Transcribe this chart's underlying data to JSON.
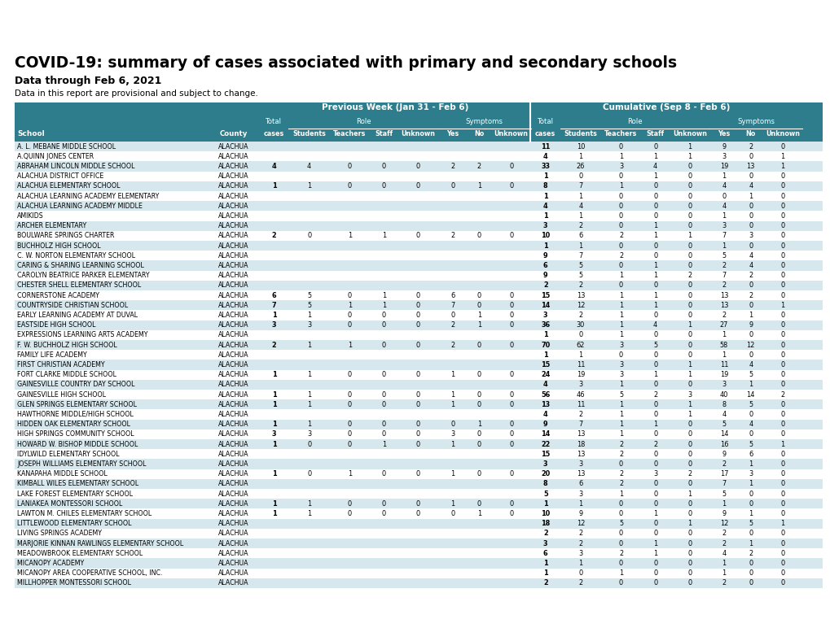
{
  "title": "COVID-19: summary of cases associated with primary and secondary schools",
  "subtitle": "Data through Feb 6, 2021",
  "note": "Data in this report are provisional and subject to change.",
  "header_color": "#2D7D8C",
  "alt_row_color": "#D6E8ED",
  "white_row_color": "#FFFFFF",
  "header_text_color": "#FFFFFF",
  "rows": [
    [
      "A. L. MEBANE MIDDLE SCHOOL",
      "ALACHUA",
      "",
      "",
      "",
      "",
      "",
      "",
      "",
      "",
      "11",
      "10",
      "0",
      "0",
      "1",
      "9",
      "2",
      "0"
    ],
    [
      "A.QUINN JONES CENTER",
      "ALACHUA",
      "",
      "",
      "",
      "",
      "",
      "",
      "",
      "",
      "4",
      "1",
      "1",
      "1",
      "1",
      "3",
      "0",
      "1"
    ],
    [
      "ABRAHAM LINCOLN MIDDLE SCHOOL",
      "ALACHUA",
      "4",
      "4",
      "0",
      "0",
      "0",
      "2",
      "2",
      "0",
      "33",
      "26",
      "3",
      "4",
      "0",
      "19",
      "13",
      "1"
    ],
    [
      "ALACHUA DISTRICT OFFICE",
      "ALACHUA",
      "",
      "",
      "",
      "",
      "",
      "",
      "",
      "",
      "1",
      "0",
      "0",
      "1",
      "0",
      "1",
      "0",
      "0"
    ],
    [
      "ALACHUA ELEMENTARY SCHOOL",
      "ALACHUA",
      "1",
      "1",
      "0",
      "0",
      "0",
      "0",
      "1",
      "0",
      "8",
      "7",
      "1",
      "0",
      "0",
      "4",
      "4",
      "0"
    ],
    [
      "ALACHUA LEARNING ACADEMY ELEMENTARY",
      "ALACHUA",
      "",
      "",
      "",
      "",
      "",
      "",
      "",
      "",
      "1",
      "1",
      "0",
      "0",
      "0",
      "0",
      "1",
      "0"
    ],
    [
      "ALACHUA LEARNING ACADEMY MIDDLE",
      "ALACHUA",
      "",
      "",
      "",
      "",
      "",
      "",
      "",
      "",
      "4",
      "4",
      "0",
      "0",
      "0",
      "4",
      "0",
      "0"
    ],
    [
      "AMIKIDS",
      "ALACHUA",
      "",
      "",
      "",
      "",
      "",
      "",
      "",
      "",
      "1",
      "1",
      "0",
      "0",
      "0",
      "1",
      "0",
      "0"
    ],
    [
      "ARCHER ELEMENTARY",
      "ALACHUA",
      "",
      "",
      "",
      "",
      "",
      "",
      "",
      "",
      "3",
      "2",
      "0",
      "1",
      "0",
      "3",
      "0",
      "0"
    ],
    [
      "BOULWARE SPRINGS CHARTER",
      "ALACHUA",
      "2",
      "0",
      "1",
      "1",
      "0",
      "2",
      "0",
      "0",
      "10",
      "6",
      "2",
      "1",
      "1",
      "7",
      "3",
      "0"
    ],
    [
      "BUCHHOLZ HIGH SCHOOL",
      "ALACHUA",
      "",
      "",
      "",
      "",
      "",
      "",
      "",
      "",
      "1",
      "1",
      "0",
      "0",
      "0",
      "1",
      "0",
      "0"
    ],
    [
      "C. W. NORTON ELEMENTARY SCHOOL",
      "ALACHUA",
      "",
      "",
      "",
      "",
      "",
      "",
      "",
      "",
      "9",
      "7",
      "2",
      "0",
      "0",
      "5",
      "4",
      "0"
    ],
    [
      "CARING & SHARING LEARNING SCHOOL",
      "ALACHUA",
      "",
      "",
      "",
      "",
      "",
      "",
      "",
      "",
      "6",
      "5",
      "0",
      "1",
      "0",
      "2",
      "4",
      "0"
    ],
    [
      "CAROLYN BEATRICE PARKER ELEMENTARY",
      "ALACHUA",
      "",
      "",
      "",
      "",
      "",
      "",
      "",
      "",
      "9",
      "5",
      "1",
      "1",
      "2",
      "7",
      "2",
      "0"
    ],
    [
      "CHESTER SHELL ELEMENTARY SCHOOL",
      "ALACHUA",
      "",
      "",
      "",
      "",
      "",
      "",
      "",
      "",
      "2",
      "2",
      "0",
      "0",
      "0",
      "2",
      "0",
      "0"
    ],
    [
      "CORNERSTONE ACADEMY",
      "ALACHUA",
      "6",
      "5",
      "0",
      "1",
      "0",
      "6",
      "0",
      "0",
      "15",
      "13",
      "1",
      "1",
      "0",
      "13",
      "2",
      "0"
    ],
    [
      "COUNTRYSIDE CHRISTIAN SCHOOL",
      "ALACHUA",
      "7",
      "5",
      "1",
      "1",
      "0",
      "7",
      "0",
      "0",
      "14",
      "12",
      "1",
      "1",
      "0",
      "13",
      "0",
      "1"
    ],
    [
      "EARLY LEARNING ACADEMY AT DUVAL",
      "ALACHUA",
      "1",
      "1",
      "0",
      "0",
      "0",
      "0",
      "1",
      "0",
      "3",
      "2",
      "1",
      "0",
      "0",
      "2",
      "1",
      "0"
    ],
    [
      "EASTSIDE HIGH SCHOOL",
      "ALACHUA",
      "3",
      "3",
      "0",
      "0",
      "0",
      "2",
      "1",
      "0",
      "36",
      "30",
      "1",
      "4",
      "1",
      "27",
      "9",
      "0"
    ],
    [
      "EXPRESSIONS LEARNING ARTS ACADEMY",
      "ALACHUA",
      "",
      "",
      "",
      "",
      "",
      "",
      "",
      "",
      "1",
      "0",
      "1",
      "0",
      "0",
      "1",
      "0",
      "0"
    ],
    [
      "F. W. BUCHHOLZ HIGH SCHOOL",
      "ALACHUA",
      "2",
      "1",
      "1",
      "0",
      "0",
      "2",
      "0",
      "0",
      "70",
      "62",
      "3",
      "5",
      "0",
      "58",
      "12",
      "0"
    ],
    [
      "FAMILY LIFE ACADEMY",
      "ALACHUA",
      "",
      "",
      "",
      "",
      "",
      "",
      "",
      "",
      "1",
      "1",
      "0",
      "0",
      "0",
      "1",
      "0",
      "0"
    ],
    [
      "FIRST CHRISTIAN ACADEMY",
      "ALACHUA",
      "",
      "",
      "",
      "",
      "",
      "",
      "",
      "",
      "15",
      "11",
      "3",
      "0",
      "1",
      "11",
      "4",
      "0"
    ],
    [
      "FORT CLARKE MIDDLE SCHOOL",
      "ALACHUA",
      "1",
      "1",
      "0",
      "0",
      "0",
      "1",
      "0",
      "0",
      "24",
      "19",
      "3",
      "1",
      "1",
      "19",
      "5",
      "0"
    ],
    [
      "GAINESVILLE COUNTRY DAY SCHOOL",
      "ALACHUA",
      "",
      "",
      "",
      "",
      "",
      "",
      "",
      "",
      "4",
      "3",
      "1",
      "0",
      "0",
      "3",
      "1",
      "0"
    ],
    [
      "GAINESVILLE HIGH SCHOOL",
      "ALACHUA",
      "1",
      "1",
      "0",
      "0",
      "0",
      "1",
      "0",
      "0",
      "56",
      "46",
      "5",
      "2",
      "3",
      "40",
      "14",
      "2"
    ],
    [
      "GLEN SPRINGS ELEMENTARY SCHOOL",
      "ALACHUA",
      "1",
      "1",
      "0",
      "0",
      "0",
      "1",
      "0",
      "0",
      "13",
      "11",
      "1",
      "0",
      "1",
      "8",
      "5",
      "0"
    ],
    [
      "HAWTHORNE MIDDLE/HIGH SCHOOL",
      "ALACHUA",
      "",
      "",
      "",
      "",
      "",
      "",
      "",
      "",
      "4",
      "2",
      "1",
      "0",
      "1",
      "4",
      "0",
      "0"
    ],
    [
      "HIDDEN OAK ELEMENTARY SCHOOL",
      "ALACHUA",
      "1",
      "1",
      "0",
      "0",
      "0",
      "0",
      "1",
      "0",
      "9",
      "7",
      "1",
      "1",
      "0",
      "5",
      "4",
      "0"
    ],
    [
      "HIGH SPRINGS COMMUNITY SCHOOL",
      "ALACHUA",
      "3",
      "3",
      "0",
      "0",
      "0",
      "3",
      "0",
      "0",
      "14",
      "13",
      "1",
      "0",
      "0",
      "14",
      "0",
      "0"
    ],
    [
      "HOWARD W. BISHOP MIDDLE SCHOOL",
      "ALACHUA",
      "1",
      "0",
      "0",
      "1",
      "0",
      "1",
      "0",
      "0",
      "22",
      "18",
      "2",
      "2",
      "0",
      "16",
      "5",
      "1"
    ],
    [
      "IDYLWILD ELEMENTARY SCHOOL",
      "ALACHUA",
      "",
      "",
      "",
      "",
      "",
      "",
      "",
      "",
      "15",
      "13",
      "2",
      "0",
      "0",
      "9",
      "6",
      "0"
    ],
    [
      "JOSEPH WILLIAMS ELEMENTARY SCHOOL",
      "ALACHUA",
      "",
      "",
      "",
      "",
      "",
      "",
      "",
      "",
      "3",
      "3",
      "0",
      "0",
      "0",
      "2",
      "1",
      "0"
    ],
    [
      "KANAPAHA MIDDLE SCHOOL",
      "ALACHUA",
      "1",
      "0",
      "1",
      "0",
      "0",
      "1",
      "0",
      "0",
      "20",
      "13",
      "2",
      "3",
      "2",
      "17",
      "3",
      "0"
    ],
    [
      "KIMBALL WILES ELEMENTARY SCHOOL",
      "ALACHUA",
      "",
      "",
      "",
      "",
      "",
      "",
      "",
      "",
      "8",
      "6",
      "2",
      "0",
      "0",
      "7",
      "1",
      "0"
    ],
    [
      "LAKE FOREST ELEMENTARY SCHOOL",
      "ALACHUA",
      "",
      "",
      "",
      "",
      "",
      "",
      "",
      "",
      "5",
      "3",
      "1",
      "0",
      "1",
      "5",
      "0",
      "0"
    ],
    [
      "LANIAKEA MONTESSORI SCHOOL",
      "ALACHUA",
      "1",
      "1",
      "0",
      "0",
      "0",
      "1",
      "0",
      "0",
      "1",
      "1",
      "0",
      "0",
      "0",
      "1",
      "0",
      "0"
    ],
    [
      "LAWTON M. CHILES ELEMENTARY SCHOOL",
      "ALACHUA",
      "1",
      "1",
      "0",
      "0",
      "0",
      "0",
      "1",
      "0",
      "10",
      "9",
      "0",
      "1",
      "0",
      "9",
      "1",
      "0"
    ],
    [
      "LITTLEWOOD ELEMENTARY SCHOOL",
      "ALACHUA",
      "",
      "",
      "",
      "",
      "",
      "",
      "",
      "",
      "18",
      "12",
      "5",
      "0",
      "1",
      "12",
      "5",
      "1"
    ],
    [
      "LIVING SPRINGS ACADEMY",
      "ALACHUA",
      "",
      "",
      "",
      "",
      "",
      "",
      "",
      "",
      "2",
      "2",
      "0",
      "0",
      "0",
      "2",
      "0",
      "0"
    ],
    [
      "MARJORIE KINNAN RAWLINGS ELEMENTARY SCHOOL",
      "ALACHUA",
      "",
      "",
      "",
      "",
      "",
      "",
      "",
      "",
      "3",
      "2",
      "0",
      "1",
      "0",
      "2",
      "1",
      "0"
    ],
    [
      "MEADOWBROOK ELEMENTARY SCHOOL",
      "ALACHUA",
      "",
      "",
      "",
      "",
      "",
      "",
      "",
      "",
      "6",
      "3",
      "2",
      "1",
      "0",
      "4",
      "2",
      "0"
    ],
    [
      "MICANOPY ACADEMY",
      "ALACHUA",
      "",
      "",
      "",
      "",
      "",
      "",
      "",
      "",
      "1",
      "1",
      "0",
      "0",
      "0",
      "1",
      "0",
      "0"
    ],
    [
      "MICANOPY AREA COOPERATIVE SCHOOL, INC.",
      "ALACHUA",
      "",
      "",
      "",
      "",
      "",
      "",
      "",
      "",
      "1",
      "0",
      "1",
      "0",
      "0",
      "1",
      "0",
      "0"
    ],
    [
      "MILLHOPPER MONTESSORI SCHOOL",
      "ALACHUA",
      "",
      "",
      "",
      "",
      "",
      "",
      "",
      "",
      "2",
      "2",
      "0",
      "0",
      "0",
      "2",
      "0",
      "0"
    ]
  ]
}
